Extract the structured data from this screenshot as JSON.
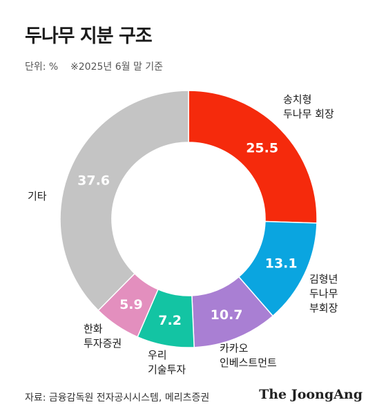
{
  "header": {
    "title": "두나무 지분 구조",
    "unit": "단위: %",
    "note": "※2025년 6월 말 기준"
  },
  "chart_data": {
    "type": "pie",
    "variant": "donut",
    "title": "두나무 지분 구조",
    "unit": "%",
    "slices": [
      {
        "label_lines": [
          "송치형",
          "두나무 회장"
        ],
        "value": 25.5,
        "value_label": "25.5",
        "color": "#f52a0c"
      },
      {
        "label_lines": [
          "김형년",
          "두나무",
          "부회장"
        ],
        "value": 13.1,
        "value_label": "13.1",
        "color": "#0aa5e0"
      },
      {
        "label_lines": [
          "카카오",
          "인베스트먼트"
        ],
        "value": 10.7,
        "value_label": "10.7",
        "color": "#a97fd3"
      },
      {
        "label_lines": [
          "우리",
          "기술투자"
        ],
        "value": 7.2,
        "value_label": "7.2",
        "color": "#13c4a3"
      },
      {
        "label_lines": [
          "한화",
          "투자증권"
        ],
        "value": 5.9,
        "value_label": "5.9",
        "color": "#e38fbe"
      },
      {
        "label_lines": [
          "기타"
        ],
        "value": 37.6,
        "value_label": "37.6",
        "color": "#c4c4c4"
      }
    ]
  },
  "footer": {
    "source": "자료: 금융감독원 전자공시시스템, 메리츠증권",
    "logo": "The JoongAng"
  }
}
